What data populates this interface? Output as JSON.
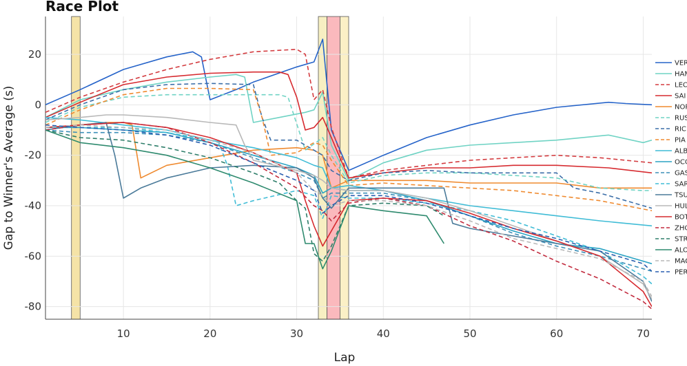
{
  "chart_data": {
    "type": "line",
    "title": "Race Plot",
    "xlabel": "Lap",
    "ylabel": "Gap to Winner's Average (s)",
    "xlim": [
      1,
      71
    ],
    "ylim": [
      -85,
      35
    ],
    "xticks": [
      10,
      20,
      30,
      40,
      50,
      60,
      70
    ],
    "yticks": [
      20,
      0,
      -20,
      -40,
      -60,
      -80
    ],
    "grid": true,
    "legend_position": "right",
    "shaded_regions": [
      {
        "x0": 4,
        "x1": 5,
        "color": "#f5e3a7"
      },
      {
        "x0": 32.5,
        "x1": 33.5,
        "color": "#f7efc2"
      },
      {
        "x0": 33.5,
        "x1": 35,
        "color": "#fbb9bd"
      },
      {
        "x0": 35,
        "x1": 36,
        "color": "#fbf0c6"
      }
    ],
    "series": [
      {
        "name": "VER",
        "color": "#2563c9",
        "dash": false,
        "x": [
          1,
          5,
          10,
          15,
          18,
          19,
          20,
          23,
          25,
          30,
          32,
          33,
          34,
          36,
          40,
          45,
          50,
          55,
          60,
          66,
          68,
          71
        ],
        "y": [
          0,
          6,
          14,
          19,
          21,
          19,
          2,
          6,
          9,
          15,
          17,
          26,
          -10,
          -26,
          -20,
          -13,
          -8,
          -4,
          -1,
          1,
          0.5,
          0
        ]
      },
      {
        "name": "HAM",
        "color": "#6fd3c4",
        "dash": false,
        "x": [
          1,
          5,
          10,
          15,
          20,
          23,
          24,
          25,
          28,
          31,
          32,
          33,
          34,
          36,
          40,
          45,
          50,
          55,
          60,
          66,
          70,
          71
        ],
        "y": [
          -5,
          2,
          6,
          9,
          11,
          12,
          11,
          -7,
          -5,
          -3,
          -2,
          5,
          -16,
          -30,
          -23,
          -18,
          -16,
          -15,
          -14,
          -12,
          -15,
          -14
        ]
      },
      {
        "name": "LEC",
        "color": "#d33b3f",
        "dash": true,
        "x": [
          1,
          5,
          10,
          15,
          20,
          25,
          30,
          31,
          32,
          33,
          34,
          36,
          40,
          45,
          50,
          55,
          60,
          65,
          71
        ],
        "y": [
          -3,
          3,
          9,
          14,
          18,
          21,
          22,
          20,
          2,
          6,
          -9,
          -29,
          -26,
          -24,
          -22,
          -21,
          -20,
          -21,
          -23
        ]
      },
      {
        "name": "SAI",
        "color": "#d62a2f",
        "dash": false,
        "x": [
          1,
          5,
          10,
          15,
          20,
          25,
          28,
          29,
          30,
          31,
          32,
          33,
          34,
          36,
          40,
          45,
          50,
          55,
          60,
          66,
          71
        ],
        "y": [
          -5,
          1,
          8,
          11,
          12.5,
          13,
          13,
          12,
          3,
          -10,
          -9,
          -5,
          -13,
          -29,
          -27,
          -25,
          -25,
          -24,
          -24,
          -25,
          -27
        ]
      },
      {
        "name": "NOR",
        "color": "#ef8a2f",
        "dash": false,
        "x": [
          1,
          5,
          8,
          10,
          11,
          12,
          15,
          20,
          25,
          30,
          32,
          33,
          34,
          36,
          40,
          45,
          50,
          60,
          65,
          71
        ],
        "y": [
          -9,
          -8,
          -7,
          -7,
          -8,
          -29,
          -24,
          -21,
          -18,
          -17,
          -18,
          -20,
          -33,
          -30,
          -30,
          -30,
          -31,
          -31,
          -33,
          -33
        ]
      },
      {
        "name": "RUS",
        "color": "#6fd3c4",
        "dash": true,
        "x": [
          1,
          5,
          10,
          15,
          20,
          25,
          28,
          29,
          31,
          33,
          34,
          36,
          40,
          45,
          50,
          55,
          60,
          65,
          70,
          71
        ],
        "y": [
          -7,
          -1,
          3,
          4,
          4,
          4,
          4,
          3,
          -18,
          -13,
          -20,
          -31,
          -28,
          -27,
          -27,
          -28,
          -29,
          -33,
          -34,
          -34
        ]
      },
      {
        "name": "RIC",
        "color": "#3b6ea8",
        "dash": true,
        "x": [
          1,
          5,
          10,
          15,
          20,
          25,
          26,
          27,
          30,
          33,
          34,
          36,
          40,
          45,
          50,
          60,
          62,
          65,
          70,
          71
        ],
        "y": [
          -6,
          0,
          6,
          8,
          8.5,
          8,
          -5,
          -14,
          -14,
          -20,
          -26,
          -30,
          -27,
          -26,
          -27,
          -27,
          -33,
          -35,
          -40,
          -41
        ]
      },
      {
        "name": "PIA",
        "color": "#ef8a2f",
        "dash": true,
        "x": [
          1,
          5,
          10,
          15,
          20,
          25,
          26,
          27,
          30,
          32,
          33,
          34,
          36,
          40,
          45,
          50,
          55,
          60,
          65,
          71
        ],
        "y": [
          -8,
          -2,
          4,
          6.5,
          6.5,
          6,
          -5,
          -20,
          -19,
          -15,
          -16,
          -22,
          -32,
          -31,
          -32,
          -33,
          -34,
          -36,
          -38,
          -42
        ]
      },
      {
        "name": "ALB",
        "color": "#3fbcd6",
        "dash": false,
        "x": [
          1,
          5,
          10,
          15,
          20,
          25,
          30,
          32,
          33,
          34,
          36,
          40,
          45,
          50,
          55,
          60,
          65,
          71
        ],
        "y": [
          -5,
          -6,
          -8,
          -10,
          -14,
          -17,
          -21,
          -24,
          -25,
          -33,
          -32,
          -34,
          -37,
          -40,
          -42,
          -44,
          -46,
          -48
        ]
      },
      {
        "name": "OCO",
        "color": "#2aa3c4",
        "dash": false,
        "x": [
          1,
          5,
          10,
          15,
          20,
          25,
          30,
          32,
          33,
          34,
          36,
          40,
          45,
          50,
          55,
          60,
          65,
          71
        ],
        "y": [
          -9,
          -9,
          -10,
          -11,
          -15,
          -20,
          -25,
          -28,
          -35,
          -33,
          -34,
          -34,
          -38,
          -44,
          -50,
          -55,
          -57,
          -63
        ]
      },
      {
        "name": "GAS",
        "color": "#3b8fb8",
        "dash": true,
        "x": [
          1,
          5,
          10,
          15,
          20,
          25,
          30,
          32,
          33,
          34,
          36,
          40,
          45,
          50,
          55,
          60,
          65,
          71
        ],
        "y": [
          -10,
          -11,
          -11,
          -12,
          -15,
          -21,
          -27,
          -30,
          -37,
          -35,
          -35,
          -35,
          -38,
          -44,
          -51,
          -56,
          -60,
          -66
        ]
      },
      {
        "name": "SAR",
        "color": "#3fbcd6",
        "dash": true,
        "x": [
          1,
          5,
          10,
          15,
          20,
          21,
          22,
          23,
          25,
          30,
          32,
          33,
          34,
          36,
          40,
          45,
          50,
          55,
          60,
          65,
          70,
          71
        ],
        "y": [
          -9,
          -9,
          -9,
          -11,
          -14,
          -15,
          -24,
          -40,
          -38,
          -34,
          -36,
          -45,
          -36,
          -37,
          -37,
          -39,
          -42,
          -46,
          -52,
          -58,
          -68,
          -71
        ]
      },
      {
        "name": "TSU",
        "color": "#4a7a99",
        "dash": false,
        "x": [
          1,
          5,
          8,
          9,
          10,
          12,
          15,
          20,
          25,
          30,
          32,
          33,
          34,
          36,
          40,
          45,
          47,
          48,
          50,
          55,
          60,
          65,
          70,
          71
        ],
        "y": [
          -10,
          -8,
          -7,
          -20,
          -37,
          -33,
          -29,
          -25,
          -24,
          -25,
          -29,
          -37,
          -41,
          -33,
          -33,
          -33,
          -33,
          -47,
          -49,
          -52,
          -55,
          -58,
          -70,
          -78
        ]
      },
      {
        "name": "HUL",
        "color": "#b8b8b8",
        "dash": false,
        "x": [
          1,
          5,
          8,
          10,
          15,
          20,
          23,
          24,
          25,
          30,
          32,
          33,
          34,
          36,
          40,
          45,
          50,
          55,
          60,
          65,
          70,
          71
        ],
        "y": [
          -6,
          -5,
          -4,
          -4,
          -5,
          -7,
          -8,
          -16,
          -22,
          -26,
          -28,
          -30,
          -33,
          -34,
          -34,
          -37,
          -42,
          -48,
          -54,
          -60,
          -71,
          -77
        ]
      },
      {
        "name": "BOT",
        "color": "#d62a2f",
        "dash": false,
        "x": [
          1,
          5,
          10,
          15,
          20,
          25,
          30,
          31,
          32,
          33,
          34,
          36,
          40,
          45,
          50,
          55,
          60,
          65,
          70,
          71
        ],
        "y": [
          -9,
          -8,
          -7,
          -9,
          -13,
          -19,
          -27,
          -38,
          -48,
          -56,
          -50,
          -38,
          -37,
          -38,
          -43,
          -49,
          -54,
          -60,
          -74,
          -80
        ]
      },
      {
        "name": "ZHO",
        "color": "#c22a3d",
        "dash": true,
        "x": [
          1,
          5,
          10,
          15,
          20,
          25,
          30,
          32,
          33,
          34,
          36,
          40,
          45,
          50,
          55,
          60,
          65,
          70,
          71
        ],
        "y": [
          -10,
          -8,
          -7,
          -9,
          -15,
          -23,
          -33,
          -40,
          -42,
          -46,
          -39,
          -37,
          -40,
          -48,
          -54,
          -62,
          -69,
          -78,
          -81
        ]
      },
      {
        "name": "STR",
        "color": "#2e7e6a",
        "dash": true,
        "x": [
          1,
          5,
          10,
          15,
          20,
          25,
          28,
          30,
          31,
          32,
          33,
          34,
          36,
          40,
          45,
          47
        ],
        "y": [
          -10,
          -13,
          -14,
          -17,
          -21,
          -27,
          -31,
          -38,
          -41,
          -59,
          -62,
          -56,
          -40,
          -39,
          -40,
          -44
        ]
      },
      {
        "name": "ALO",
        "color": "#2e8a6e",
        "dash": false,
        "x": [
          1,
          5,
          10,
          15,
          20,
          25,
          30,
          31,
          32,
          33,
          34,
          36,
          40,
          45,
          47
        ],
        "y": [
          -10,
          -15,
          -17,
          -20,
          -25,
          -31,
          -38,
          -55,
          -55,
          -65,
          -58,
          -40,
          -42,
          -44,
          -55
        ]
      },
      {
        "name": "MAG",
        "color": "#b8b8b8",
        "dash": true,
        "x": [
          1,
          5,
          10,
          15,
          20,
          25,
          30,
          32,
          33,
          34,
          36,
          40,
          45,
          50,
          55,
          60,
          65,
          70,
          71
        ],
        "y": [
          -9,
          -8,
          -9,
          -10,
          -14,
          -19,
          -27,
          -34,
          -36,
          -40,
          -38,
          -38,
          -40,
          -46,
          -53,
          -57,
          -61,
          -70,
          -76
        ]
      },
      {
        "name": "PER",
        "color": "#2a5fb0",
        "dash": true,
        "x": [
          1,
          5,
          10,
          15,
          20,
          25,
          30,
          32,
          33,
          34,
          36,
          40,
          45,
          50,
          55,
          60,
          65,
          70,
          71
        ],
        "y": [
          -8,
          -9,
          -10,
          -12,
          -16,
          -23,
          -30,
          -34,
          -43,
          -40,
          -36,
          -36,
          -39,
          -44,
          -49,
          -53,
          -58,
          -63,
          -66
        ]
      }
    ]
  }
}
